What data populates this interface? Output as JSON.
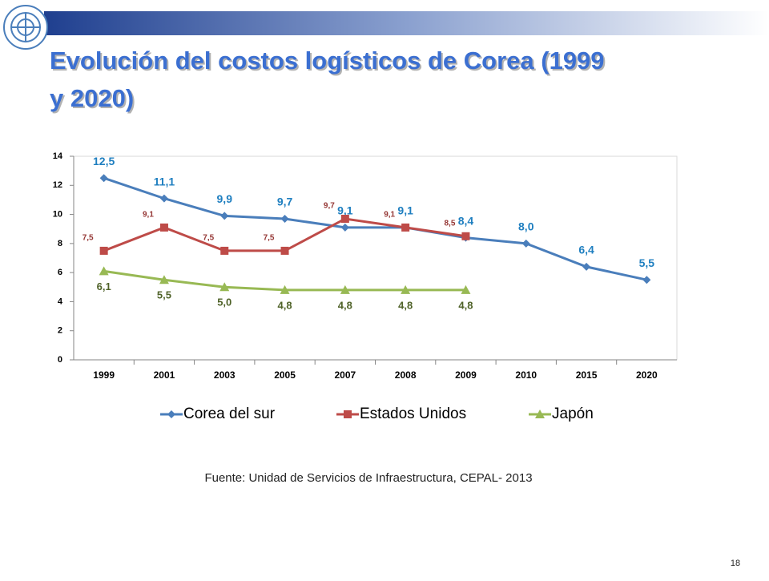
{
  "title": "Evolución del costos logísticos de Corea (1999 y 2020)",
  "source": "Fuente: Unidad de Servicios de Infraestructura, CEPAL- 2013",
  "page_number": "18",
  "chart_data": {
    "type": "line",
    "categories": [
      "1999",
      "2001",
      "2003",
      "2005",
      "2007",
      "2008",
      "2009",
      "2010",
      "2015",
      "2020"
    ],
    "series": [
      {
        "name": "Corea del sur",
        "color": "#4a7ebb",
        "label_color": "#1f7fc0",
        "marker": "diamond",
        "values": [
          12.5,
          11.1,
          9.9,
          9.7,
          9.1,
          9.1,
          8.4,
          8.0,
          6.4,
          5.5
        ],
        "value_labels": [
          "12,5",
          "11,1",
          "9,9",
          "9,7",
          "9,1",
          "9,1",
          "8,4",
          "8,0",
          "6,4",
          "5,5"
        ]
      },
      {
        "name": "Estados Unidos",
        "color": "#be4b48",
        "label_color": "#953735",
        "marker": "square",
        "values": [
          7.5,
          9.1,
          7.5,
          7.5,
          9.7,
          9.1,
          8.5,
          null,
          null,
          null
        ],
        "value_labels": [
          "7,5",
          "9,1",
          "7,5",
          "7,5",
          "9,7",
          "9,1",
          "8,5",
          null,
          null,
          null
        ]
      },
      {
        "name": "Japón",
        "color": "#98b954",
        "label_color": "#4f6228",
        "marker": "triangle",
        "values": [
          6.1,
          5.5,
          5.0,
          4.8,
          4.8,
          4.8,
          4.8,
          null,
          null,
          null
        ],
        "value_labels": [
          "6,1",
          "5,5",
          "5,0",
          "4,8",
          "4,8",
          "4,8",
          "4,8",
          null,
          null,
          null
        ]
      }
    ],
    "ylim": [
      0,
      14
    ],
    "yticks": [
      0,
      2,
      4,
      6,
      8,
      10,
      12,
      14
    ],
    "grid": false,
    "legend": "bottom"
  }
}
